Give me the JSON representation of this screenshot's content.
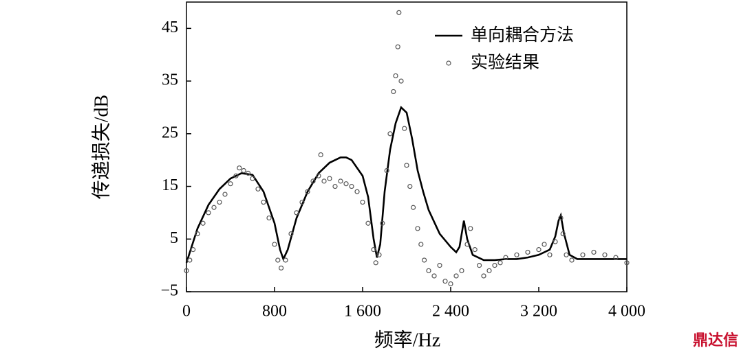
{
  "chart_data": {
    "type": "line",
    "x_label": "频率/Hz",
    "y_label": "传递损失/dB",
    "xlim": [
      0,
      4000
    ],
    "ylim": [
      -5,
      50
    ],
    "xticks": [
      0,
      {
        "value": 800,
        "label": "800"
      },
      {
        "value": 1600,
        "label": "1 600"
      },
      {
        "value": 2400,
        "label": "2 400"
      },
      {
        "value": 3200,
        "label": "3 200"
      },
      {
        "value": 4000,
        "label": "4 000"
      }
    ],
    "yticks": [
      {
        "value": -5,
        "label": "−5"
      },
      5,
      15,
      25,
      35,
      45
    ],
    "legend": "upper right",
    "series": [
      {
        "name": "单向耦合方法",
        "type": "line",
        "color": "#000000",
        "x": [
          0,
          100,
          200,
          300,
          400,
          500,
          600,
          700,
          800,
          850,
          880,
          920,
          1000,
          1100,
          1200,
          1300,
          1400,
          1450,
          1500,
          1600,
          1650,
          1700,
          1730,
          1760,
          1800,
          1850,
          1900,
          1950,
          2000,
          2050,
          2100,
          2150,
          2200,
          2300,
          2400,
          2450,
          2480,
          2520,
          2550,
          2600,
          2700,
          2800,
          2900,
          3000,
          3100,
          3200,
          3300,
          3350,
          3380,
          3400,
          3430,
          3480,
          3550,
          3700,
          4000
        ],
        "values": [
          0.5,
          7,
          11.5,
          14.5,
          16.5,
          17.5,
          17.2,
          14,
          8,
          3,
          1.2,
          3,
          9,
          14,
          17.5,
          19.5,
          20.5,
          20.5,
          20,
          17,
          13,
          5,
          1.5,
          4,
          14,
          22,
          27,
          30,
          29,
          24,
          18,
          14,
          10.5,
          6,
          3.5,
          2.5,
          3.5,
          8.5,
          5,
          2,
          1,
          1,
          1.2,
          1.2,
          1.5,
          2,
          3,
          5.5,
          8.5,
          9.5,
          6,
          2,
          1.2,
          1.2,
          1.2
        ]
      },
      {
        "name": "实验结果",
        "type": "scatter",
        "color": "#555555",
        "x": [
          0,
          30,
          60,
          100,
          150,
          200,
          250,
          300,
          350,
          400,
          450,
          480,
          520,
          560,
          600,
          650,
          700,
          750,
          800,
          830,
          860,
          900,
          950,
          1000,
          1050,
          1100,
          1150,
          1200,
          1220,
          1250,
          1300,
          1350,
          1400,
          1450,
          1500,
          1550,
          1600,
          1650,
          1700,
          1720,
          1750,
          1780,
          1820,
          1850,
          1880,
          1900,
          1920,
          1930,
          1950,
          1980,
          2000,
          2030,
          2060,
          2100,
          2130,
          2160,
          2200,
          2250,
          2300,
          2350,
          2400,
          2450,
          2500,
          2550,
          2580,
          2620,
          2660,
          2700,
          2750,
          2800,
          2850,
          2900,
          3000,
          3100,
          3200,
          3250,
          3300,
          3350,
          3400,
          3420,
          3450,
          3500,
          3600,
          3700,
          3800,
          3900,
          4000
        ],
        "values": [
          -1,
          1,
          3,
          6,
          8,
          10,
          11,
          12,
          13.5,
          15.5,
          17,
          18.5,
          18,
          17.5,
          16.5,
          14.5,
          12,
          9,
          4,
          1,
          -0.5,
          1,
          6,
          10,
          12,
          14,
          16,
          17,
          21,
          16,
          16.5,
          15,
          16,
          15.5,
          15,
          14,
          12,
          8,
          3,
          0.5,
          2,
          8,
          18,
          25,
          33,
          36,
          41.5,
          48,
          35,
          26,
          19,
          15,
          11,
          7,
          4,
          1,
          -1,
          -2,
          0,
          -3,
          -3.5,
          -2,
          -1,
          4,
          7,
          3,
          0,
          -2,
          -1,
          0,
          0.5,
          1.5,
          2,
          2.5,
          3,
          4,
          2,
          4.5,
          9,
          6,
          2,
          1,
          2,
          2.5,
          2,
          1.5,
          0.5
        ]
      }
    ]
  },
  "watermark": "鼎达信"
}
